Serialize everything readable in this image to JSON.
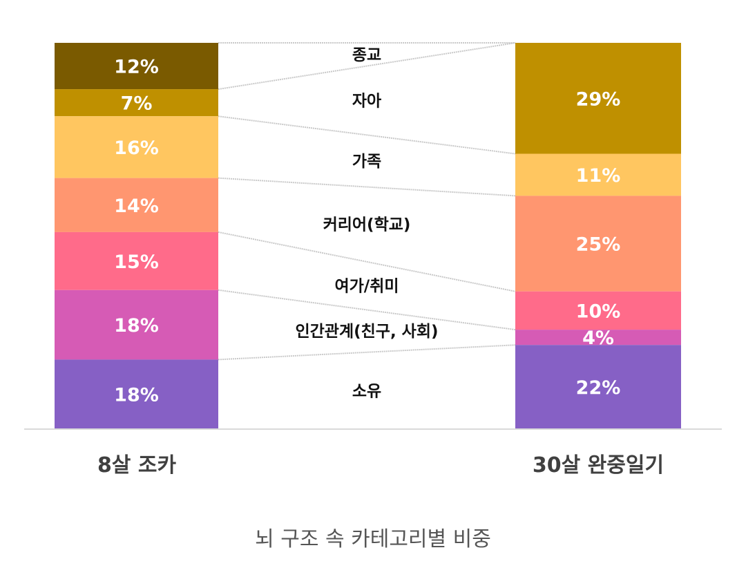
{
  "caption": "뇌 구조 속 카테고리별 비중",
  "chart_data": {
    "type": "bar",
    "stacked": true,
    "title": "",
    "categories": [
      "8살 조카",
      "30살 완중일기"
    ],
    "series": [
      {
        "name": "종교",
        "color": "#7a5a00",
        "values": [
          12,
          0
        ]
      },
      {
        "name": "자아",
        "color": "#bf9000",
        "values": [
          7,
          29
        ]
      },
      {
        "name": "가족",
        "color": "#ffc660",
        "values": [
          16,
          11
        ]
      },
      {
        "name": "커리어(학교)",
        "color": "#ff9670",
        "values": [
          14,
          25
        ]
      },
      {
        "name": "여가/취미",
        "color": "#ff6b8a",
        "values": [
          15,
          10
        ]
      },
      {
        "name": "인간관계(친구, 사회)",
        "color": "#d65bb5",
        "values": [
          18,
          4
        ]
      },
      {
        "name": "소유",
        "color": "#8660c5",
        "values": [
          18,
          22
        ]
      }
    ],
    "value_labels": [
      [
        "12%",
        "7%",
        "16%",
        "14%",
        "15%",
        "18%",
        "18%"
      ],
      [
        "",
        "29%",
        "11%",
        "25%",
        "10%",
        "4%",
        "22%"
      ]
    ],
    "ylim": [
      0,
      100
    ],
    "grid": false,
    "legend": "center-between-bars"
  }
}
